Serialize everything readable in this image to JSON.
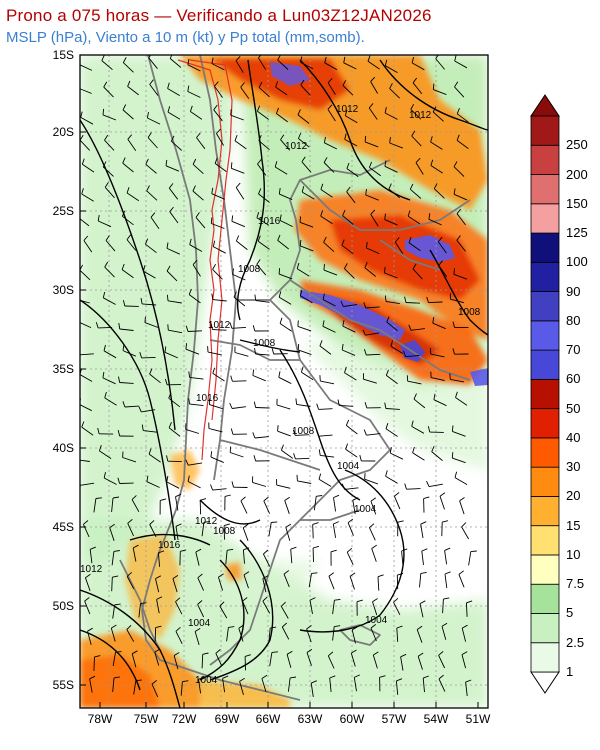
{
  "title": {
    "line1": "Prono a 075 horas — Verificando a Lun03Z12JAN2026",
    "line2": "MSLP (hPa), Viento a 10 m (kt) y Pp total (mm,somb)."
  },
  "map": {
    "lat_labels": [
      "15S",
      "20S",
      "25S",
      "30S",
      "35S",
      "40S",
      "45S",
      "50S",
      "55S"
    ],
    "lon_labels": [
      "78W",
      "75W",
      "72W",
      "69W",
      "66W",
      "63W",
      "60W",
      "57W",
      "54W",
      "51W"
    ],
    "isobar_labels": [
      "1012",
      "1012",
      "1012",
      "1016",
      "1008",
      "1012",
      "1008",
      "1016",
      "1008",
      "1008",
      "1004",
      "1004",
      "1008",
      "1012",
      "1016",
      "1012",
      "1004",
      "1004",
      "1004"
    ]
  },
  "colorbar": {
    "levels": [
      "1",
      "2.5",
      "5",
      "7.5",
      "10",
      "15",
      "20",
      "30",
      "40",
      "50",
      "60",
      "70",
      "80",
      "90",
      "100",
      "125",
      "150",
      "200",
      "250"
    ],
    "colors": [
      "#e9fbe6",
      "#c8f0c0",
      "#a6e39a",
      "#ffffc0",
      "#ffe070",
      "#ffb030",
      "#ff8c10",
      "#ff5a00",
      "#e02000",
      "#b81000",
      "#4848d8",
      "#5a5ae8",
      "#4040c0",
      "#2020a0",
      "#10107a",
      "#f4a0a0",
      "#e07070",
      "#c84040",
      "#a01818"
    ]
  }
}
